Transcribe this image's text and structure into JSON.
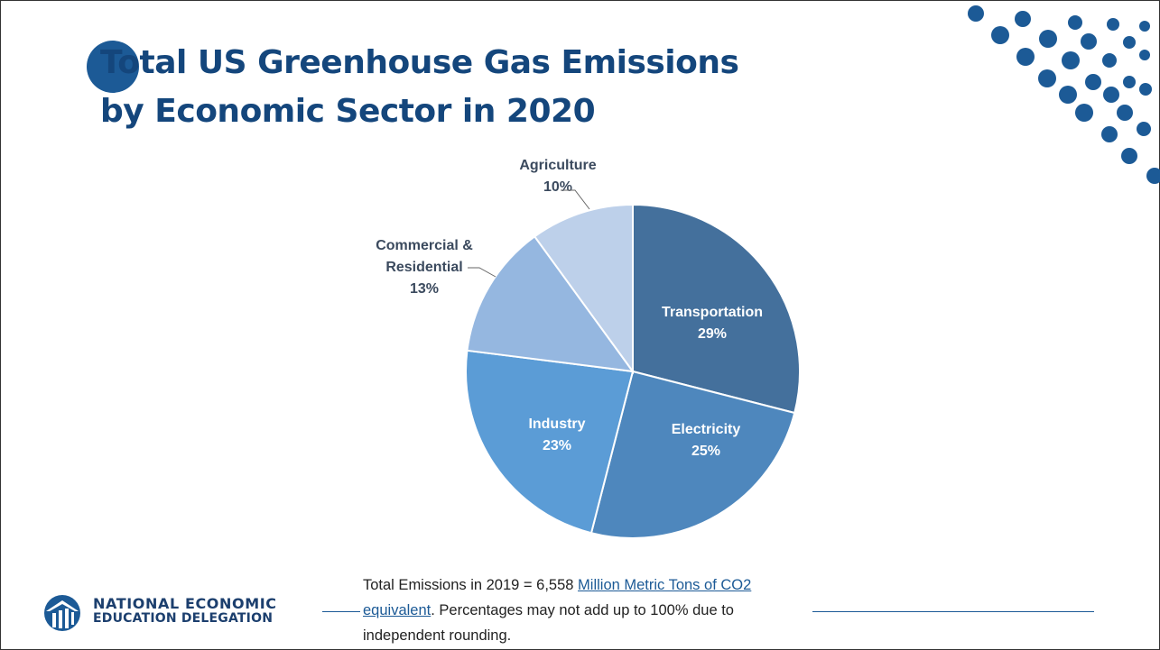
{
  "title": {
    "line1": "Total US Greenhouse Gas Emissions",
    "line2": "by Economic Sector in 2020"
  },
  "chart_data": {
    "type": "pie",
    "slices": [
      {
        "label": "Transportation",
        "percent_label": "29%",
        "value": 29,
        "color": "#44709c",
        "label_color": "#ffffff"
      },
      {
        "label": "Electricity",
        "percent_label": "25%",
        "value": 25,
        "color": "#4e87bd",
        "label_color": "#ffffff"
      },
      {
        "label": "Industry",
        "percent_label": "23%",
        "value": 23,
        "color": "#5b9cd6",
        "label_color": "#ffffff"
      },
      {
        "label": "Commercial & Residential",
        "percent_label": "13%",
        "value": 13,
        "color": "#95b7e0",
        "label_color": "#3b4a5e"
      },
      {
        "label": "Agriculture",
        "percent_label": "10%",
        "value": 10,
        "color": "#bdd0ea",
        "label_color": "#3b4a5e"
      }
    ]
  },
  "footnote": {
    "pre": "Total Emissions in 2019 = 6,558 ",
    "link1": "Million Metric Tons of CO2",
    "link2": "equivalent",
    "post": ". Percentages may not add up to 100% due to independent rounding."
  },
  "logo": {
    "line1": "NATIONAL ECONOMIC",
    "line2": "EDUCATION DELEGATION",
    "icon": "columns-logo-icon"
  },
  "colors": {
    "title": "#14467c",
    "accent": "#1c5a96",
    "dots": "#1c5a96"
  }
}
